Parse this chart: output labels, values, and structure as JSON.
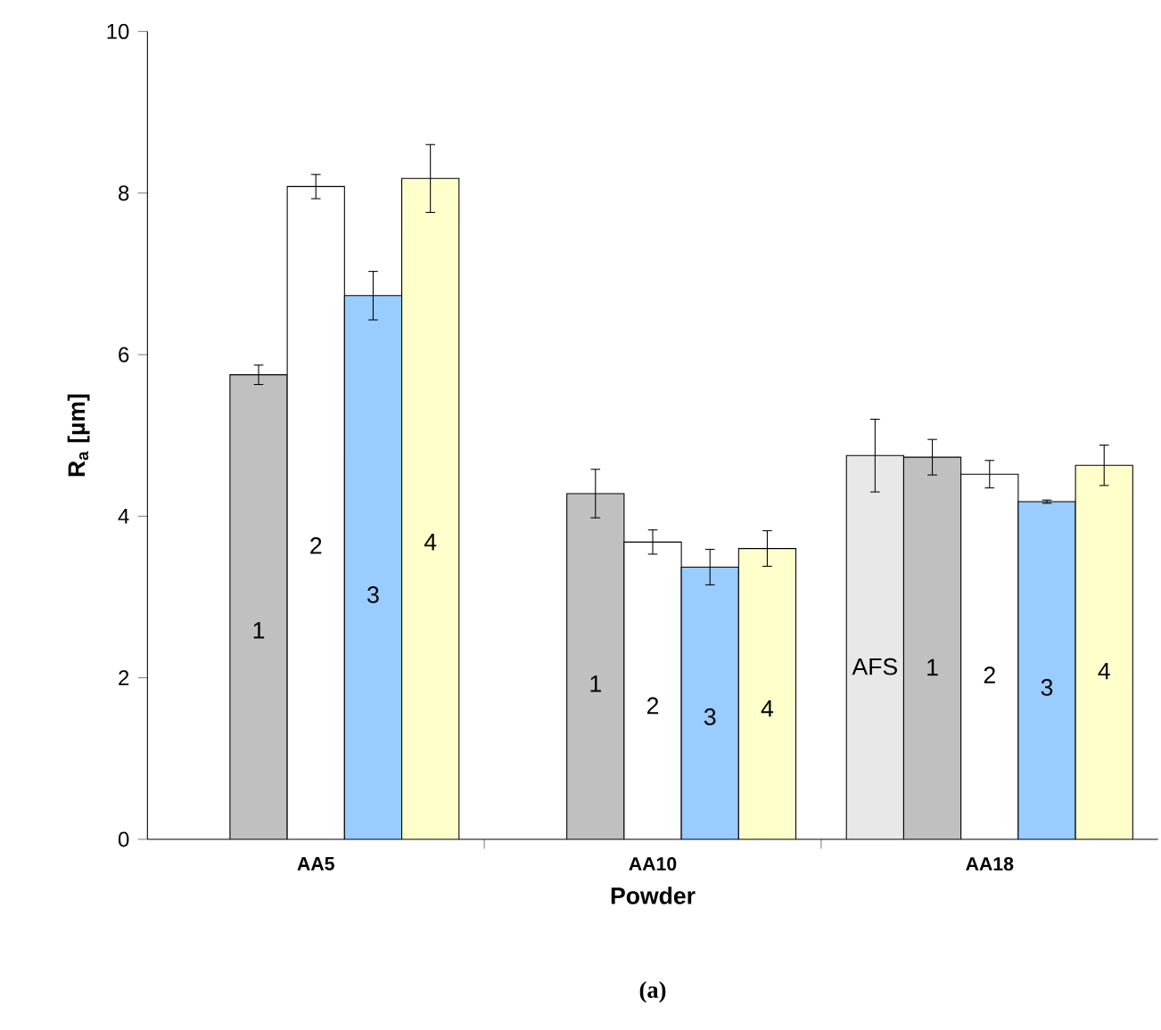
{
  "chart_data": {
    "type": "bar",
    "xlabel": "Powder",
    "ylabel": "**R**$_{a}$ [µm]",
    "categories": [
      "AA5",
      "AA10",
      "AA18"
    ],
    "series": [
      {
        "name": "AFS",
        "color": "#e8e8e8",
        "values": [
          null,
          null,
          4.75
        ],
        "errors": [
          null,
          null,
          0.45
        ]
      },
      {
        "name": "1",
        "color": "#c0c0c0",
        "values": [
          5.75,
          4.28,
          4.73
        ],
        "errors": [
          0.12,
          0.3,
          0.22
        ]
      },
      {
        "name": "2",
        "color": "#ffffff",
        "values": [
          8.08,
          3.68,
          4.52
        ],
        "errors": [
          0.15,
          0.15,
          0.17
        ]
      },
      {
        "name": "3",
        "color": "#99ccff",
        "values": [
          6.73,
          3.37,
          4.18
        ],
        "errors": [
          0.3,
          0.22,
          0.02
        ]
      },
      {
        "name": "4",
        "color": "#ffffcc",
        "values": [
          8.18,
          3.6,
          4.63
        ],
        "errors": [
          0.42,
          0.22,
          0.25
        ]
      }
    ],
    "ylim": [
      0,
      10
    ],
    "yticks": [
      0,
      2,
      4,
      6,
      8,
      10
    ],
    "grid": false,
    "legend": false,
    "annotations": [
      "(a)"
    ]
  }
}
